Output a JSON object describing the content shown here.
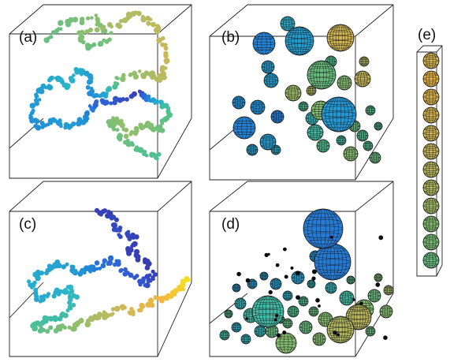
{
  "panels": [
    {
      "id": "a",
      "label": "(a)",
      "kind": "random-walk-chain"
    },
    {
      "id": "b",
      "label": "(b)",
      "kind": "sphere-cluster"
    },
    {
      "id": "c",
      "label": "(c)",
      "kind": "random-walk-chain"
    },
    {
      "id": "d",
      "label": "(d)",
      "kind": "sphere-cluster"
    },
    {
      "id": "e",
      "label": "(e)",
      "kind": "sphere-column"
    }
  ],
  "colormap": [
    "#3b2ba0",
    "#2f5fd6",
    "#1f8fd8",
    "#2bb5c8",
    "#4fc08f",
    "#93be6a",
    "#c9b85a",
    "#f2b63e",
    "#f3e320"
  ]
}
